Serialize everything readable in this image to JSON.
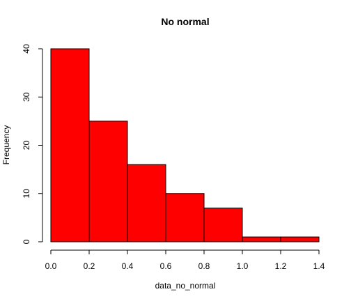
{
  "chart_data": {
    "type": "bar",
    "title": "No normal",
    "xlabel": "data_no_normal",
    "ylabel": "Frequency",
    "bins": [
      {
        "x0": 0.0,
        "x1": 0.2,
        "count": 40
      },
      {
        "x0": 0.2,
        "x1": 0.4,
        "count": 25
      },
      {
        "x0": 0.4,
        "x1": 0.6,
        "count": 16
      },
      {
        "x0": 0.6,
        "x1": 0.8,
        "count": 10
      },
      {
        "x0": 0.8,
        "x1": 1.0,
        "count": 7
      },
      {
        "x0": 1.0,
        "x1": 1.2,
        "count": 1
      },
      {
        "x0": 1.2,
        "x1": 1.4,
        "count": 1
      }
    ],
    "xlim": [
      0.0,
      1.4
    ],
    "ylim": [
      0,
      40
    ],
    "x_ticks": [
      "0.0",
      "0.2",
      "0.4",
      "0.6",
      "0.8",
      "1.0",
      "1.2",
      "1.4"
    ],
    "y_ticks": [
      "0",
      "10",
      "20",
      "30",
      "40"
    ],
    "bar_color": "#ff0000",
    "bar_border_color": "#000000",
    "grid": false,
    "legend": "none"
  }
}
